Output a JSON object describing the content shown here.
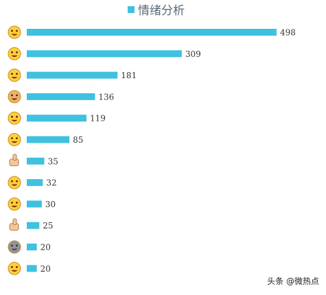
{
  "chart_data": {
    "type": "bar",
    "orientation": "horizontal",
    "title": "",
    "legend": {
      "label": "情绪分析",
      "position": "top-center"
    },
    "categories": [
      "grin-emoji",
      "laugh-cry-emoji",
      "tongue-emoji",
      "doge-emoji",
      "shiba-emoji",
      "crying-laugh-emoji",
      "thumbs-up-side-emoji",
      "big-grin-emoji",
      "dizzy-smile-emoji",
      "thumbs-up-emoji",
      "husky-emoji",
      "thinking-emoji"
    ],
    "values": [
      498,
      309,
      181,
      136,
      119,
      85,
      35,
      32,
      30,
      25,
      20,
      20
    ],
    "xlim": [
      0,
      520
    ],
    "series_color": "#3fc1df",
    "grid": false
  },
  "watermark": "头条 @微热点"
}
